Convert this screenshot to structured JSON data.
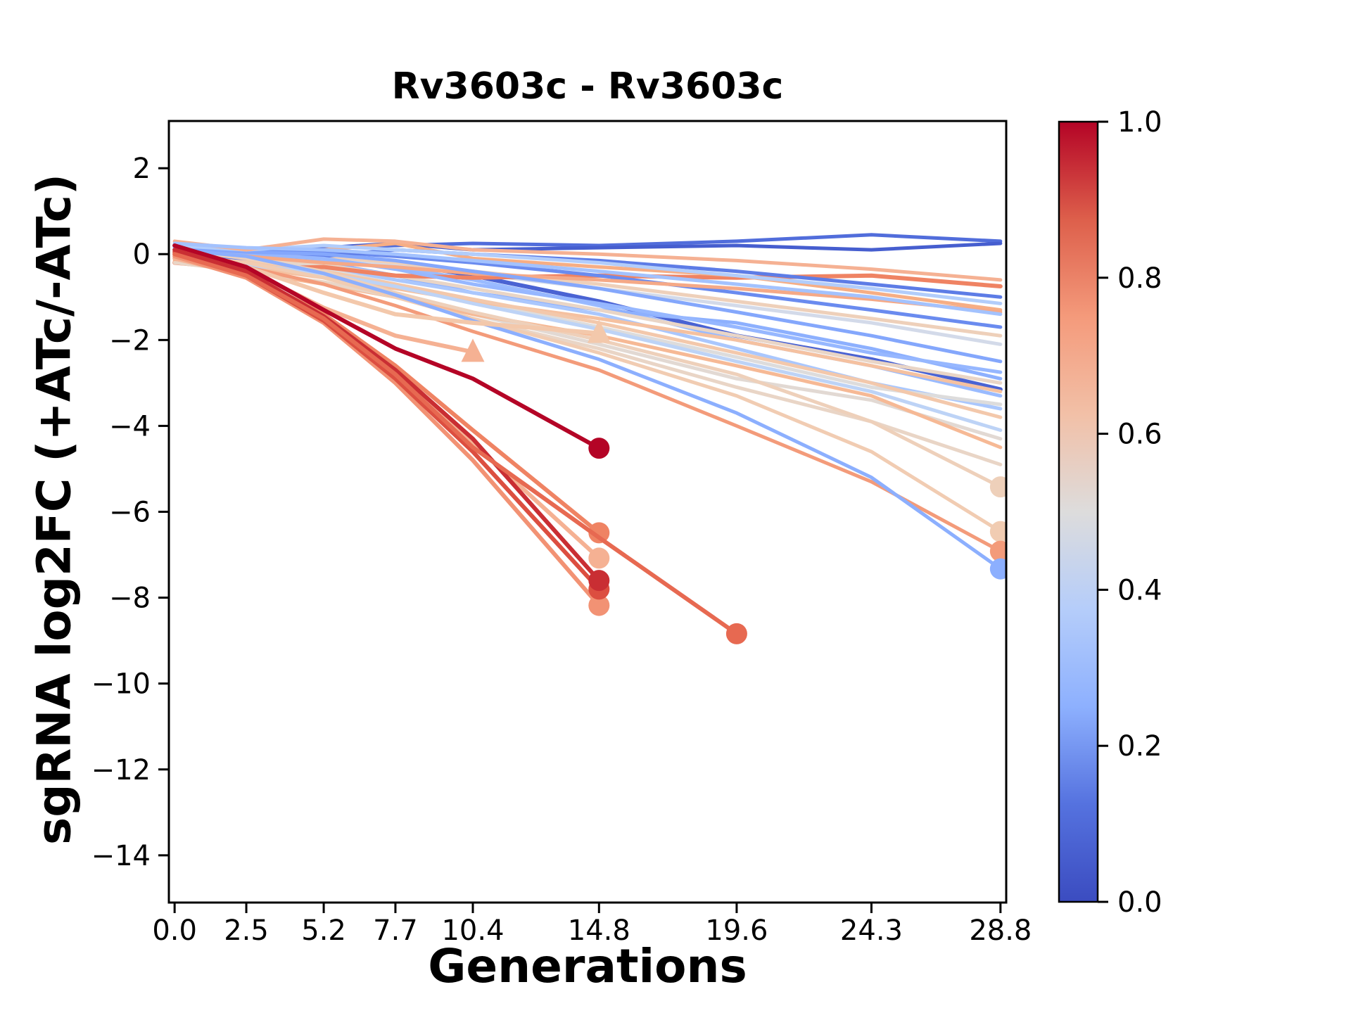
{
  "title": "Rv3603c - Rv3603c",
  "xlabel": "Generations",
  "ylabel": "sgRNA log2FC (+ATc/-ATc)",
  "chart_data": {
    "type": "line",
    "title": "Rv3603c - Rv3603c",
    "xlabel": "Generations",
    "ylabel": "sgRNA log2FC (+ATc/-ATc)",
    "x_tick_labels": [
      "0.0",
      "2.5",
      "5.2",
      "7.7",
      "10.4",
      "14.8",
      "19.6",
      "24.3",
      "28.8"
    ],
    "x_tick_values": [
      0,
      2.5,
      5.2,
      7.7,
      10.4,
      14.8,
      19.6,
      24.3,
      28.8
    ],
    "y_tick_values": [
      2,
      0,
      -2,
      -4,
      -6,
      -8,
      -10,
      -12,
      -14
    ],
    "xlim": [
      -0.2,
      29.0
    ],
    "ylim": [
      -15.1,
      3.1
    ],
    "grid": false,
    "legend": false,
    "colormap": "coolwarm",
    "background": "#ffffff",
    "axis_color": "#000000",
    "series": [
      {
        "value": 0.1,
        "color": "#516ddb",
        "lw": 5,
        "marker": null,
        "x": [
          0,
          2.5,
          5.2,
          7.7,
          10.4,
          14.8,
          19.6,
          24.3,
          28.8
        ],
        "y": [
          0.15,
          0.1,
          0.15,
          0.2,
          0.25,
          0.2,
          0.3,
          0.45,
          0.3
        ]
      },
      {
        "value": 0.05,
        "color": "#465ecf",
        "lw": 5,
        "marker": null,
        "x": [
          0,
          2.5,
          5.2,
          7.7,
          10.4,
          14.8,
          19.6,
          24.3,
          28.8
        ],
        "y": [
          0.1,
          0.05,
          0.15,
          0.25,
          0.1,
          0.15,
          0.2,
          0.1,
          0.25
        ]
      },
      {
        "value": 0.08,
        "color": "#4a63d3",
        "lw": 6,
        "marker": null,
        "x": [
          0,
          2.5,
          5.2,
          7.7,
          10.4,
          14.8,
          19.6,
          24.3,
          28.8
        ],
        "y": [
          0.2,
          0.0,
          -0.1,
          -0.2,
          -0.5,
          -1.1,
          -1.9,
          -2.45,
          -3.15
        ]
      },
      {
        "value": 0.35,
        "color": "#9abbff",
        "lw": 5,
        "marker": null,
        "x": [
          0,
          2.5,
          5.2,
          7.7,
          10.4,
          14.8,
          19.6,
          24.3,
          28.8
        ],
        "y": [
          0.15,
          -0.05,
          -0.15,
          -0.3,
          -0.6,
          -1.2,
          -2.0,
          -2.6,
          -3.3
        ]
      },
      {
        "value": 0.25,
        "color": "#8db0fe",
        "lw": 5,
        "marker": null,
        "x": [
          0,
          2.5,
          5.2,
          7.7,
          10.4,
          14.8,
          19.6,
          24.3,
          28.8
        ],
        "y": [
          0.1,
          0.0,
          -0.2,
          -0.5,
          -0.9,
          -1.3,
          -1.6,
          -2.2,
          -2.9
        ]
      },
      {
        "value": 0.4,
        "color": "#aac7fd",
        "lw": 5,
        "marker": null,
        "x": [
          0,
          2.5,
          5.2,
          7.7,
          10.4,
          14.8,
          19.6,
          24.3,
          28.8
        ],
        "y": [
          0.05,
          -0.1,
          -0.3,
          -0.6,
          -0.9,
          -1.4,
          -2.2,
          -3.0,
          -3.6
        ]
      },
      {
        "value": 0.5,
        "color": "#dddcdc",
        "lw": 5,
        "marker": null,
        "x": [
          0,
          2.5,
          5.2,
          7.7,
          10.4,
          14.8,
          19.6,
          24.3,
          28.8
        ],
        "y": [
          0.0,
          -0.15,
          -0.35,
          -0.7,
          -1.1,
          -1.7,
          -2.4,
          -3.1,
          -3.5
        ]
      },
      {
        "value": 0.52,
        "color": "#e2d9d3",
        "lw": 5,
        "marker": null,
        "x": [
          0,
          2.5,
          5.2,
          7.7,
          10.4,
          14.8,
          19.6,
          24.3,
          28.8
        ],
        "y": [
          -0.05,
          -0.2,
          -0.5,
          -0.9,
          -1.4,
          -2.1,
          -2.9,
          -3.4,
          -4.3
        ]
      },
      {
        "value": 0.48,
        "color": "#d3dae9",
        "lw": 5,
        "marker": null,
        "x": [
          0,
          2.5,
          5.2,
          7.7,
          10.4,
          14.8,
          19.6,
          24.3,
          28.8
        ],
        "y": [
          0.1,
          0.0,
          -0.1,
          -0.25,
          -0.45,
          -0.8,
          -1.2,
          -1.6,
          -2.1
        ]
      },
      {
        "value": 0.55,
        "color": "#e9d5c6",
        "lw": 5,
        "marker": null,
        "x": [
          0,
          2.5,
          5.2,
          7.7,
          10.4,
          14.8,
          19.6,
          24.3,
          28.8
        ],
        "y": [
          0.0,
          -0.1,
          -0.25,
          -0.5,
          -0.8,
          -1.3,
          -1.9,
          -2.5,
          -3.0
        ]
      },
      {
        "value": 0.8,
        "color": "#ef8363",
        "lw": 6,
        "marker": null,
        "x": [
          0,
          2.5,
          5.2,
          7.7,
          10.4,
          14.8,
          19.6,
          24.3,
          28.8
        ],
        "y": [
          -0.2,
          -0.35,
          -0.3,
          -0.5,
          -0.55,
          -0.5,
          -0.55,
          -0.5,
          -0.75
        ]
      },
      {
        "value": 0.72,
        "color": "#f6ae85",
        "lw": 5,
        "marker": null,
        "x": [
          0,
          2.5,
          5.2,
          7.7,
          10.4,
          14.8,
          19.6,
          24.3,
          28.8
        ],
        "y": [
          -0.15,
          -0.2,
          0.1,
          0.25,
          -0.1,
          -0.3,
          -0.5,
          -0.9,
          -1.3
        ]
      },
      {
        "value": 0.65,
        "color": "#f5c1a0",
        "lw": 5,
        "marker": null,
        "x": [
          0,
          2.5,
          5.2,
          7.7,
          10.4,
          14.8,
          19.6,
          24.3,
          28.8
        ],
        "y": [
          0.0,
          -0.3,
          -0.55,
          -0.8,
          -1.1,
          -1.5,
          -2.0,
          -2.6,
          -3.2
        ]
      },
      {
        "value": 0.68,
        "color": "#f6b995",
        "lw": 5,
        "marker": null,
        "x": [
          0,
          2.5,
          5.2,
          7.7,
          10.4,
          14.8,
          19.6,
          24.3,
          28.8
        ],
        "y": [
          -0.1,
          -0.4,
          -0.7,
          -1.0,
          -1.4,
          -1.9,
          -2.6,
          -3.3,
          -4.5
        ]
      },
      {
        "value": 0.62,
        "color": "#f3c8ab",
        "lw": 5,
        "marker": null,
        "x": [
          0,
          2.5,
          5.2,
          7.7,
          10.4,
          14.8,
          19.6,
          24.3,
          28.8
        ],
        "y": [
          0.05,
          -0.15,
          -0.4,
          -0.7,
          -1.05,
          -1.6,
          -2.3,
          -3.0,
          -3.8
        ]
      },
      {
        "value": 0.58,
        "color": "#eed0ba",
        "lw": 5,
        "marker": null,
        "x": [
          0,
          2.5,
          5.2,
          7.7,
          10.4,
          14.8,
          19.6,
          24.3,
          28.8
        ],
        "y": [
          0.15,
          0.05,
          -0.05,
          -0.2,
          -0.4,
          -0.7,
          -1.1,
          -1.5,
          -1.9
        ]
      },
      {
        "value": 0.2,
        "color": "#6a8bef",
        "lw": 5,
        "marker": null,
        "x": [
          0,
          2.5,
          5.2,
          7.7,
          10.4,
          14.8,
          19.6,
          24.3,
          28.8
        ],
        "y": [
          0.2,
          0.1,
          0.05,
          -0.05,
          -0.2,
          -0.5,
          -0.9,
          -1.3,
          -1.7
        ]
      },
      {
        "value": 0.15,
        "color": "#5d7ce6",
        "lw": 5,
        "marker": null,
        "x": [
          0,
          2.5,
          5.2,
          7.7,
          10.4,
          14.8,
          19.6,
          24.3,
          28.8
        ],
        "y": [
          0.0,
          -0.1,
          -0.05,
          0.1,
          0.0,
          -0.15,
          -0.4,
          -0.7,
          -1.0
        ]
      },
      {
        "value": 0.45,
        "color": "#bdd3f6",
        "lw": 5,
        "marker": null,
        "x": [
          0,
          2.5,
          5.2,
          7.7,
          10.4,
          14.8,
          19.6,
          24.3,
          28.8
        ],
        "y": [
          -0.1,
          -0.25,
          -0.45,
          -0.75,
          -1.15,
          -1.75,
          -2.5,
          -3.2,
          -4.1
        ]
      },
      {
        "value": 0.33,
        "color": "#96b7ff",
        "lw": 5,
        "marker": null,
        "x": [
          0,
          2.5,
          5.2,
          7.7,
          10.4,
          14.8,
          19.6,
          24.3,
          28.8
        ],
        "y": [
          0.05,
          0.0,
          -0.1,
          -0.35,
          -0.7,
          -1.15,
          -1.7,
          -2.3,
          -2.75
        ]
      },
      {
        "value": 0.74,
        "color": "#f5a987",
        "lw": 5,
        "marker": null,
        "x": [
          0,
          2.5,
          5.2,
          7.7,
          10.4,
          14.8,
          19.6,
          24.3,
          28.8
        ],
        "y": [
          0.1,
          -0.05,
          -0.2,
          -0.3,
          -0.45,
          -0.6,
          -0.8,
          -1.05,
          -1.35
        ]
      },
      {
        "value": 0.55,
        "color": "#e9d5c6",
        "lw": 5,
        "marker": null,
        "x": [
          0,
          2.5,
          5.2,
          7.7,
          10.4,
          14.8,
          19.6,
          24.3,
          28.8
        ],
        "y": [
          -0.2,
          -0.4,
          -0.65,
          -1.0,
          -1.5,
          -2.2,
          -3.1,
          -3.9,
          -4.9
        ]
      },
      {
        "value": 0.28,
        "color": "#84a7fc",
        "lw": 5,
        "marker": null,
        "x": [
          0,
          2.5,
          5.2,
          7.7,
          10.4,
          14.8,
          19.6,
          24.3,
          28.8
        ],
        "y": [
          0.15,
          0.05,
          0.0,
          -0.15,
          -0.4,
          -0.8,
          -1.35,
          -1.9,
          -2.5
        ]
      },
      {
        "value": 0.42,
        "color": "#b2cdfb",
        "lw": 5,
        "marker": null,
        "x": [
          0,
          2.5,
          5.2,
          7.7,
          10.4,
          14.8,
          19.6,
          24.3,
          28.8
        ],
        "y": [
          0.2,
          0.1,
          0.2,
          0.1,
          0.0,
          -0.2,
          -0.5,
          -0.8,
          -1.15
        ]
      },
      {
        "value": 0.7,
        "color": "#f5b193",
        "lw": 5,
        "marker": null,
        "x": [
          0,
          2.5,
          5.2,
          7.7,
          10.4,
          14.8,
          19.6,
          24.3,
          28.8
        ],
        "y": [
          0.3,
          0.1,
          0.35,
          0.3,
          0.1,
          0.0,
          -0.15,
          -0.35,
          -0.6
        ]
      },
      {
        "value": 0.38,
        "color": "#a3c2fe",
        "lw": 5,
        "marker": null,
        "x": [
          0,
          2.5,
          5.2,
          7.7,
          10.4,
          14.8,
          19.6,
          24.3,
          28.8
        ],
        "y": [
          0.25,
          0.15,
          0.1,
          0.0,
          -0.15,
          -0.4,
          -0.7,
          -1.0,
          -1.4
        ]
      },
      {
        "value": 0.58,
        "color": "#eed0ba",
        "lw": 5,
        "marker": "circle",
        "x": [
          0,
          2.5,
          5.2,
          7.7,
          10.4,
          14.8,
          19.6,
          24.3,
          28.8
        ],
        "y": [
          0.1,
          -0.1,
          -0.4,
          -0.9,
          -1.35,
          -2.0,
          -2.8,
          -3.9,
          -5.42
        ]
      },
      {
        "value": 0.6,
        "color": "#f1ccb2",
        "lw": 5,
        "marker": "circle",
        "x": [
          0,
          2.5,
          5.2,
          7.7,
          10.4,
          14.8,
          19.6,
          24.3,
          28.8
        ],
        "y": [
          0.0,
          -0.2,
          -0.55,
          -1.0,
          -1.5,
          -2.3,
          -3.3,
          -4.6,
          -6.46
        ]
      },
      {
        "value": 0.76,
        "color": "#f39b7a",
        "lw": 5,
        "marker": "circle",
        "x": [
          0,
          2.5,
          5.2,
          7.7,
          10.4,
          14.8,
          19.6,
          24.3,
          28.8
        ],
        "y": [
          -0.1,
          -0.3,
          -0.7,
          -1.2,
          -1.8,
          -2.7,
          -4.0,
          -5.3,
          -6.92
        ]
      },
      {
        "value": 0.3,
        "color": "#8caffe",
        "lw": 5,
        "marker": "circle",
        "x": [
          0,
          2.5,
          5.2,
          7.7,
          10.4,
          14.8,
          19.6,
          24.3,
          28.8
        ],
        "y": [
          0.1,
          -0.05,
          -0.45,
          -0.95,
          -1.55,
          -2.45,
          -3.7,
          -5.2,
          -7.33
        ]
      },
      {
        "value": 0.7,
        "color": "#f5b193",
        "lw": 6,
        "marker": "triangle",
        "x": [
          0,
          2.5,
          5.2,
          7.7,
          10.4
        ],
        "y": [
          0.1,
          -0.35,
          -1.25,
          -1.9,
          -2.28
        ]
      },
      {
        "value": 0.62,
        "color": "#f3c8ab",
        "lw": 6,
        "marker": "triangle",
        "x": [
          0,
          2.5,
          5.2,
          7.7,
          10.4,
          14.8
        ],
        "y": [
          0.05,
          -0.3,
          -0.9,
          -1.4,
          -1.6,
          -1.84
        ]
      },
      {
        "value": 0.7,
        "color": "#f5b193",
        "lw": 6,
        "marker": "circle",
        "x": [
          0,
          2.5,
          5.2,
          7.7,
          10.4,
          14.8
        ],
        "y": [
          -0.1,
          -0.5,
          -1.5,
          -2.8,
          -4.4,
          -7.08
        ]
      },
      {
        "value": 0.77,
        "color": "#f29274",
        "lw": 6,
        "marker": "circle",
        "x": [
          0,
          2.5,
          5.2,
          7.7,
          10.4,
          14.8
        ],
        "y": [
          -0.05,
          -0.55,
          -1.6,
          -3.0,
          -4.8,
          -8.18
        ]
      },
      {
        "value": 0.8,
        "color": "#ef8363",
        "lw": 6,
        "marker": "circle",
        "x": [
          0,
          2.5,
          5.2,
          7.7,
          10.4,
          14.8
        ],
        "y": [
          0.0,
          -0.45,
          -1.4,
          -2.6,
          -4.1,
          -6.49
        ]
      },
      {
        "value": 0.88,
        "color": "#dc4e40",
        "lw": 6,
        "marker": "circle",
        "x": [
          0,
          2.5,
          5.2,
          7.7,
          10.4,
          14.8
        ],
        "y": [
          0.05,
          -0.5,
          -1.55,
          -2.9,
          -4.6,
          -7.8
        ]
      },
      {
        "value": 0.95,
        "color": "#c92e33",
        "lw": 6,
        "marker": "circle",
        "x": [
          0,
          2.5,
          5.2,
          7.7,
          10.4,
          14.8
        ],
        "y": [
          0.1,
          -0.4,
          -1.45,
          -2.7,
          -4.3,
          -7.6
        ]
      },
      {
        "value": 0.85,
        "color": "#e76951",
        "lw": 6,
        "marker": "circle",
        "x": [
          0,
          2.5,
          5.2,
          7.7,
          10.4,
          14.8,
          19.6
        ],
        "y": [
          0.0,
          -0.5,
          -1.5,
          -2.8,
          -4.5,
          -6.6,
          -8.84
        ]
      },
      {
        "value": 1.0,
        "color": "#b40426",
        "lw": 6,
        "marker": "circle",
        "x": [
          0,
          2.5,
          5.2,
          7.7,
          10.4,
          14.8
        ],
        "y": [
          0.2,
          -0.3,
          -1.3,
          -2.2,
          -2.9,
          -4.52
        ]
      }
    ],
    "colorbar": {
      "min": 0.0,
      "max": 1.0,
      "ticks": [
        "0.0",
        "0.2",
        "0.4",
        "0.6",
        "0.8",
        "1.0"
      ],
      "gradient": [
        [
          "0",
          "#3b4cc0"
        ],
        [
          "0.125",
          "#5572df"
        ],
        [
          "0.25",
          "#8db0fe"
        ],
        [
          "0.375",
          "#b5cdfa"
        ],
        [
          "0.5",
          "#dddcdc"
        ],
        [
          "0.625",
          "#f2c0a7"
        ],
        [
          "0.75",
          "#f49a7b"
        ],
        [
          "0.875",
          "#dd5f4b"
        ],
        [
          "1",
          "#b40426"
        ]
      ]
    }
  }
}
